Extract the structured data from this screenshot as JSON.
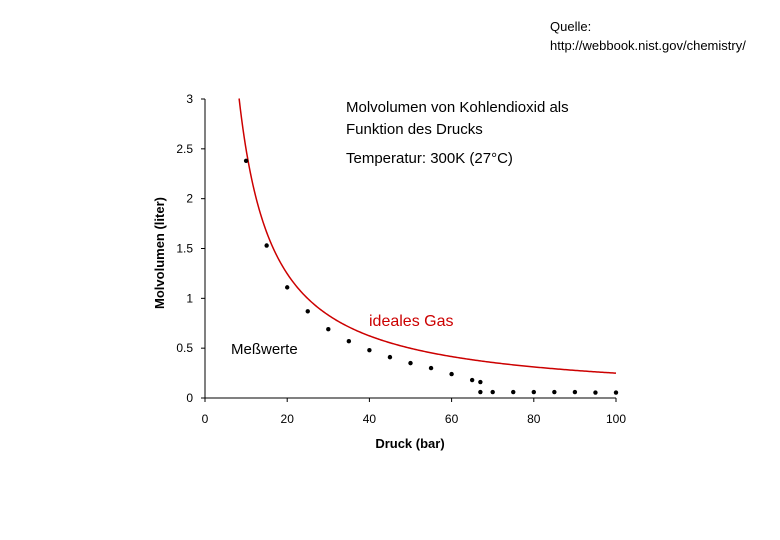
{
  "source": {
    "line1": "Quelle:",
    "line2": "http://webbook.nist.gov/chemistry/"
  },
  "chart_data": {
    "type": "scatter",
    "title_lines": [
      "Molvolumen von Kohlendioxid als",
      "Funktion des Drucks"
    ],
    "subtitle": "Temperatur: 300K  (27°C)",
    "xlabel": "Druck (bar)",
    "ylabel": "Molvolumen (liter)",
    "xlim": [
      0,
      100
    ],
    "ylim": [
      0,
      3
    ],
    "xticks": [
      "0",
      "20",
      "40",
      "60",
      "80",
      "100"
    ],
    "yticks": [
      "0",
      "0.5",
      "1",
      "1.5",
      "2",
      "2.5",
      "3"
    ],
    "grid": false,
    "annotations": {
      "ideal_label": "ideales Gas",
      "measured_label": "Meßwerte"
    },
    "colors": {
      "ideal_curve": "#cc0000",
      "points": "#000000"
    },
    "series": [
      {
        "name": "ideales Gas",
        "kind": "line",
        "function": "V = R·T/p",
        "RT_l_bar_per_mol": 24.94,
        "x_range": [
          8.3,
          100
        ]
      },
      {
        "name": "Meßwerte",
        "kind": "scatter",
        "points": [
          [
            10,
            2.38
          ],
          [
            15,
            1.53
          ],
          [
            20,
            1.11
          ],
          [
            25,
            0.87
          ],
          [
            30,
            0.69
          ],
          [
            35,
            0.57
          ],
          [
            40,
            0.48
          ],
          [
            45,
            0.41
          ],
          [
            50,
            0.35
          ],
          [
            55,
            0.3
          ],
          [
            60,
            0.24
          ],
          [
            65,
            0.18
          ],
          [
            67,
            0.16
          ],
          [
            67,
            0.06
          ],
          [
            70,
            0.06
          ],
          [
            75,
            0.06
          ],
          [
            80,
            0.06
          ],
          [
            85,
            0.06
          ],
          [
            90,
            0.06
          ],
          [
            95,
            0.055
          ],
          [
            100,
            0.055
          ]
        ]
      }
    ]
  }
}
